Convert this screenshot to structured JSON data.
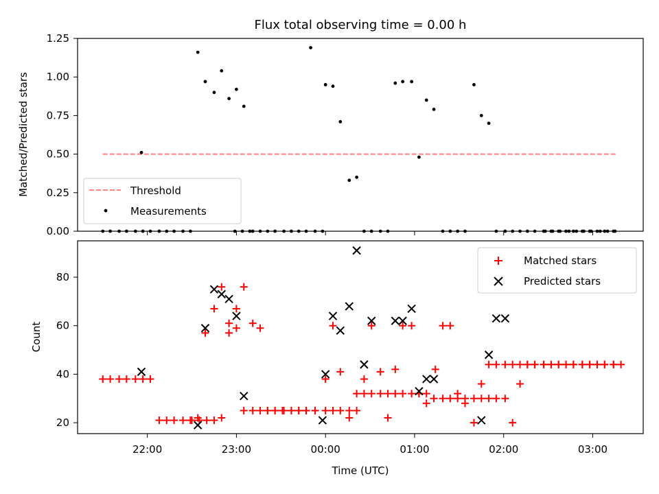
{
  "chart_data": [
    {
      "type": "scatter",
      "title": "Flux total observing time = 0.00 h",
      "xlabel": "",
      "ylabel": "Matched/Predicted stars",
      "ylim": [
        0,
        1.25
      ],
      "yticks": [
        "0.00",
        "0.25",
        "0.50",
        "0.75",
        "1.00",
        "1.25"
      ],
      "xlim": [
        "21:13",
        "03:34"
      ],
      "legend": {
        "position": "lower-left",
        "entries": [
          "Threshold",
          "Measurements"
        ]
      },
      "series": [
        {
          "name": "Threshold",
          "kind": "line",
          "style": "dashed",
          "color": "#ff8080",
          "x": [
            "21:30",
            "03:16"
          ],
          "y": [
            0.5,
            0.5
          ]
        },
        {
          "name": "Measurements",
          "kind": "points",
          "color": "#000000",
          "x": [
            "21:30",
            "21:35",
            "21:41",
            "21:46",
            "21:52",
            "21:57",
            "22:02",
            "21:56",
            "22:08",
            "22:13",
            "22:18",
            "22:24",
            "22:29",
            "22:34",
            "22:39",
            "22:45",
            "22:50",
            "22:55",
            "23:00",
            "23:05",
            "23:11",
            "23:16",
            "23:21",
            "23:26",
            "23:32",
            "23:37",
            "23:42",
            "23:47",
            "23:53",
            "23:58",
            "23:50",
            "00:00",
            "00:05",
            "00:10",
            "00:16",
            "00:21",
            "00:26",
            "00:31",
            "00:37",
            "00:42",
            "00:47",
            "00:52",
            "00:58",
            "01:03",
            "01:08",
            "01:13",
            "01:19",
            "01:24",
            "01:29",
            "01:34",
            "01:40",
            "01:45",
            "01:50",
            "01:55",
            "02:01",
            "02:06",
            "02:11",
            "02:16",
            "02:21",
            "02:27",
            "02:32",
            "02:37",
            "02:42",
            "02:47",
            "02:53",
            "02:58",
            "03:03",
            "03:08",
            "03:14",
            "02:28",
            "02:33",
            "02:38",
            "02:44",
            "02:49",
            "02:54",
            "02:59",
            "03:05",
            "03:10",
            "03:15",
            "22:59",
            "23:04",
            "23:09"
          ],
          "y": [
            0,
            0,
            0,
            0,
            0,
            0,
            0,
            0.51,
            0,
            0,
            0,
            0,
            0,
            1.16,
            0.97,
            0.9,
            1.04,
            0.86,
            0.92,
            0.81,
            0,
            0,
            0,
            0,
            0,
            0,
            0,
            0,
            0,
            0,
            1.19,
            0.95,
            0.94,
            0.71,
            0.33,
            0.35,
            0,
            0,
            0,
            0,
            0.96,
            0.97,
            0.97,
            0.48,
            0.85,
            0.79,
            0,
            0,
            0,
            0,
            0.95,
            0.75,
            0.7,
            0,
            0,
            0,
            0,
            0,
            0,
            0,
            0,
            0,
            0,
            0,
            0,
            0,
            0,
            0,
            0,
            0,
            0,
            0,
            0,
            0,
            0,
            0,
            0,
            0,
            0,
            0,
            0,
            0
          ]
        }
      ]
    },
    {
      "type": "scatter",
      "title": "",
      "xlabel": "Time (UTC)",
      "ylabel": "Count",
      "ylim": [
        15.5,
        95
      ],
      "yticks": [
        "20",
        "40",
        "60",
        "80"
      ],
      "xlim": [
        "21:13",
        "03:34"
      ],
      "xticks": [
        "22:00",
        "23:00",
        "00:00",
        "01:00",
        "02:00",
        "03:00"
      ],
      "legend": {
        "position": "top-right",
        "entries": [
          "Matched stars",
          "Predicted stars"
        ]
      },
      "series": [
        {
          "name": "Matched stars",
          "marker": "plus",
          "color": "#ff0000",
          "x": [
            "21:30",
            "21:35",
            "21:41",
            "21:46",
            "21:52",
            "21:57",
            "22:02",
            "22:08",
            "22:13",
            "22:18",
            "22:24",
            "22:29",
            "22:34",
            "22:39",
            "22:45",
            "22:50",
            "22:55",
            "23:00",
            "23:05",
            "23:11",
            "23:16",
            "23:21",
            "23:26",
            "23:32",
            "23:37",
            "23:42",
            "23:47",
            "23:53",
            "00:00",
            "00:05",
            "00:10",
            "00:16",
            "00:21",
            "00:26",
            "00:31",
            "00:37",
            "00:42",
            "00:47",
            "00:52",
            "00:58",
            "01:03",
            "01:08",
            "01:13",
            "01:19",
            "01:24",
            "01:29",
            "01:34",
            "01:40",
            "01:45",
            "01:50",
            "01:55",
            "02:01",
            "02:06",
            "02:11",
            "02:16",
            "02:21",
            "02:27",
            "02:32",
            "02:37",
            "02:42",
            "02:47",
            "02:53",
            "02:58",
            "03:03",
            "03:08",
            "03:14",
            "22:30",
            "22:35",
            "22:40",
            "22:45",
            "22:50",
            "22:55",
            "23:00",
            "23:05",
            "23:11",
            "23:16",
            "23:21",
            "23:26",
            "23:31",
            "23:37",
            "23:42",
            "23:47",
            "23:53",
            "00:00",
            "00:05",
            "00:10",
            "00:16",
            "00:21",
            "00:26",
            "00:31",
            "00:37",
            "00:42",
            "00:47",
            "00:52",
            "00:58",
            "01:03",
            "01:08",
            "01:14",
            "01:19",
            "01:24",
            "01:29",
            "01:34",
            "01:40",
            "01:45",
            "01:50",
            "01:55",
            "02:01",
            "02:06",
            "02:11",
            "02:16",
            "02:21",
            "02:27",
            "02:32",
            "02:37",
            "02:42",
            "02:47",
            "02:53",
            "02:58",
            "03:03",
            "03:08",
            "03:14",
            "03:19"
          ],
          "y": [
            38,
            38,
            38,
            38,
            38,
            38,
            38,
            21,
            21,
            21,
            21,
            21,
            22,
            57,
            67,
            76,
            61,
            59,
            25,
            25,
            25,
            25,
            25,
            25,
            25,
            25,
            25,
            25,
            38,
            60,
            41,
            22,
            32,
            32,
            32,
            32,
            32,
            42,
            60,
            60,
            32,
            28,
            30,
            30,
            30,
            30,
            30,
            20,
            36,
            44,
            44,
            44,
            44,
            44,
            44,
            44,
            44,
            44,
            44,
            44,
            44,
            44,
            44,
            44,
            44,
            44,
            21,
            21,
            21,
            21,
            22,
            57,
            67,
            76,
            61,
            59,
            25,
            25,
            25,
            25,
            25,
            25,
            25,
            25,
            25,
            25,
            25,
            25,
            38,
            60,
            41,
            22,
            32,
            32,
            32,
            32,
            32,
            42,
            60,
            60,
            32,
            28,
            30,
            30,
            30,
            30,
            30,
            20,
            36,
            44,
            44,
            44,
            44,
            44,
            44,
            44,
            44,
            44,
            44,
            44,
            44,
            44
          ]
        },
        {
          "name": "Predicted stars",
          "marker": "x",
          "color": "#000000",
          "x": [
            "21:56",
            "22:34",
            "22:39",
            "22:45",
            "22:50",
            "22:55",
            "23:00",
            "23:05",
            "23:58",
            "00:00",
            "00:05",
            "00:10",
            "00:16",
            "00:21",
            "00:26",
            "00:31",
            "00:47",
            "00:52",
            "00:58",
            "01:03",
            "01:08",
            "01:13",
            "01:45",
            "01:50",
            "01:55",
            "02:01"
          ],
          "y": [
            41,
            19,
            59,
            75,
            73,
            71,
            64,
            31,
            21,
            40,
            64,
            58,
            68,
            91,
            44,
            62,
            62,
            62,
            67,
            33,
            38,
            38,
            21,
            48,
            63,
            63
          ]
        }
      ]
    }
  ]
}
